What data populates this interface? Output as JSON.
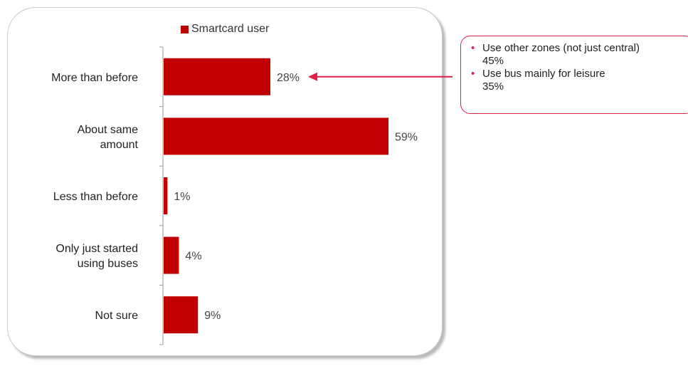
{
  "chart_data": {
    "type": "bar",
    "orientation": "horizontal",
    "categories": [
      [
        "More than before"
      ],
      [
        "About same",
        "amount"
      ],
      [
        "Less than before"
      ],
      [
        "Only just started",
        "using buses"
      ],
      [
        "Not sure"
      ]
    ],
    "series": [
      {
        "name": "Smartcard user",
        "values": [
          28,
          59,
          1,
          4,
          9
        ]
      }
    ],
    "data_labels": [
      "28%",
      "59%",
      "1%",
      "4%",
      "9%"
    ],
    "xlim": [
      0,
      100
    ],
    "grid": false,
    "legend": "top"
  },
  "legend": {
    "label": "Smartcard user"
  },
  "callout": {
    "items": [
      {
        "text": "Use other zones (not just central)",
        "value": "45%"
      },
      {
        "text": "Use bus mainly for leisure",
        "value": "35%"
      }
    ]
  },
  "colors": {
    "bar": "#c00000",
    "accent": "#e0204a",
    "axis": "#999999",
    "text": "#222222"
  }
}
